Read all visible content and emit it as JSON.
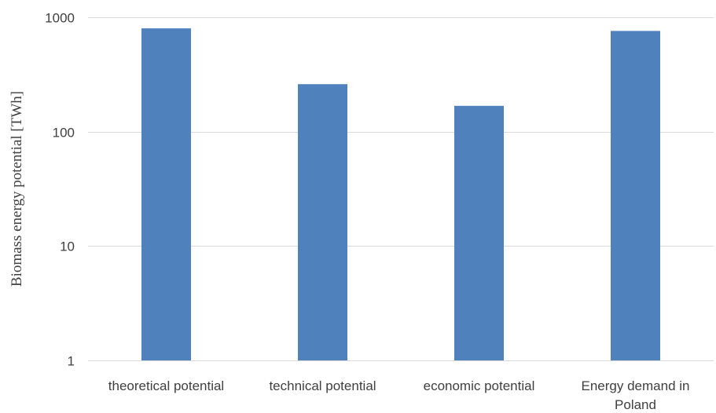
{
  "chart_data": {
    "type": "bar",
    "title": "",
    "xlabel": "",
    "ylabel": "Biomass energy potential [TWh]",
    "yscale": "log",
    "ylim": [
      1,
      1000
    ],
    "yticks": [
      {
        "value": 1,
        "label": "1"
      },
      {
        "value": 10,
        "label": "10"
      },
      {
        "value": 100,
        "label": "100"
      },
      {
        "value": 1000,
        "label": "1000"
      }
    ],
    "grid": true,
    "legend": "none",
    "bar_color": "#4f81bd",
    "categories": [
      [
        "theoretical potential"
      ],
      [
        "technical potential"
      ],
      [
        "economic potential"
      ],
      [
        "Energy demand in",
        "Poland"
      ]
    ],
    "values": [
      800,
      260,
      168,
      760
    ]
  }
}
